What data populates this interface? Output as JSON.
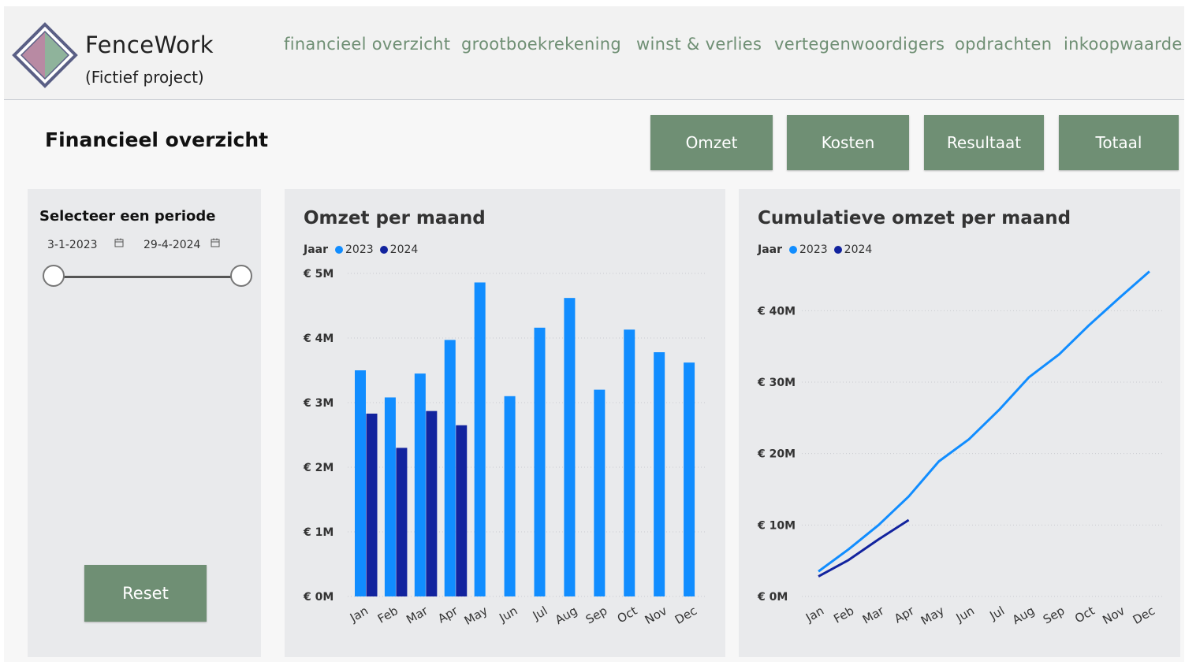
{
  "brand": {
    "name": "FenceWork",
    "subtitle": "(Fictief project)"
  },
  "nav": [
    {
      "label": "financieel overzicht"
    },
    {
      "label": "grootboekrekening"
    },
    {
      "label": "winst & verlies"
    },
    {
      "label": "vertegenwoordigers"
    },
    {
      "label": "opdrachten"
    },
    {
      "label": "inkoopwaarde"
    }
  ],
  "page": {
    "title": "Financieel overzicht"
  },
  "kpi_buttons": [
    {
      "label": "Omzet"
    },
    {
      "label": "Kosten"
    },
    {
      "label": "Resultaat"
    },
    {
      "label": "Totaal"
    }
  ],
  "filter": {
    "title": "Selecteer een periode",
    "start_date": "3-1-2023",
    "end_date": "29-4-2024",
    "reset_label": "Reset"
  },
  "colors": {
    "accent": "#6f8f74",
    "series_2023": "#118dff",
    "series_2024": "#12239e"
  },
  "legend": {
    "label": "Jaar"
  },
  "chart_data": [
    {
      "type": "bar",
      "title": "Omzet per maand",
      "legend_title": "Jaar",
      "categories": [
        "Jan",
        "Feb",
        "Mar",
        "Apr",
        "May",
        "Jun",
        "Jul",
        "Aug",
        "Sep",
        "Oct",
        "Nov",
        "Dec"
      ],
      "series": [
        {
          "name": "2023",
          "values": [
            3.5,
            3.08,
            3.45,
            3.97,
            4.86,
            3.1,
            4.16,
            4.62,
            3.2,
            4.13,
            3.78,
            3.62
          ]
        },
        {
          "name": "2024",
          "values": [
            2.83,
            2.3,
            2.87,
            2.65,
            null,
            null,
            null,
            null,
            null,
            null,
            null,
            null
          ]
        }
      ],
      "unit": "M",
      "yticks": [
        "€ 0M",
        "€ 1M",
        "€ 2M",
        "€ 3M",
        "€ 4M",
        "€ 5M"
      ],
      "ylim": [
        0,
        5
      ],
      "grid": true,
      "legend_position": "top-left"
    },
    {
      "type": "line",
      "title": "Cumulatieve omzet per maand",
      "legend_title": "Jaar",
      "categories": [
        "Jan",
        "Feb",
        "Mar",
        "Apr",
        "May",
        "Jun",
        "Jul",
        "Aug",
        "Sep",
        "Oct",
        "Nov",
        "Dec"
      ],
      "series": [
        {
          "name": "2023",
          "values": [
            3.5,
            6.6,
            10.0,
            14.0,
            18.9,
            22.0,
            26.1,
            30.7,
            33.9,
            38.0,
            41.8,
            45.5
          ]
        },
        {
          "name": "2024",
          "values": [
            2.8,
            5.1,
            8.0,
            10.7,
            null,
            null,
            null,
            null,
            null,
            null,
            null,
            null
          ]
        }
      ],
      "unit": "M",
      "yticks": [
        "€ 0M",
        "€ 10M",
        "€ 20M",
        "€ 30M",
        "€ 40M"
      ],
      "ylim": [
        0,
        45
      ],
      "grid": true,
      "legend_position": "top-left"
    }
  ]
}
